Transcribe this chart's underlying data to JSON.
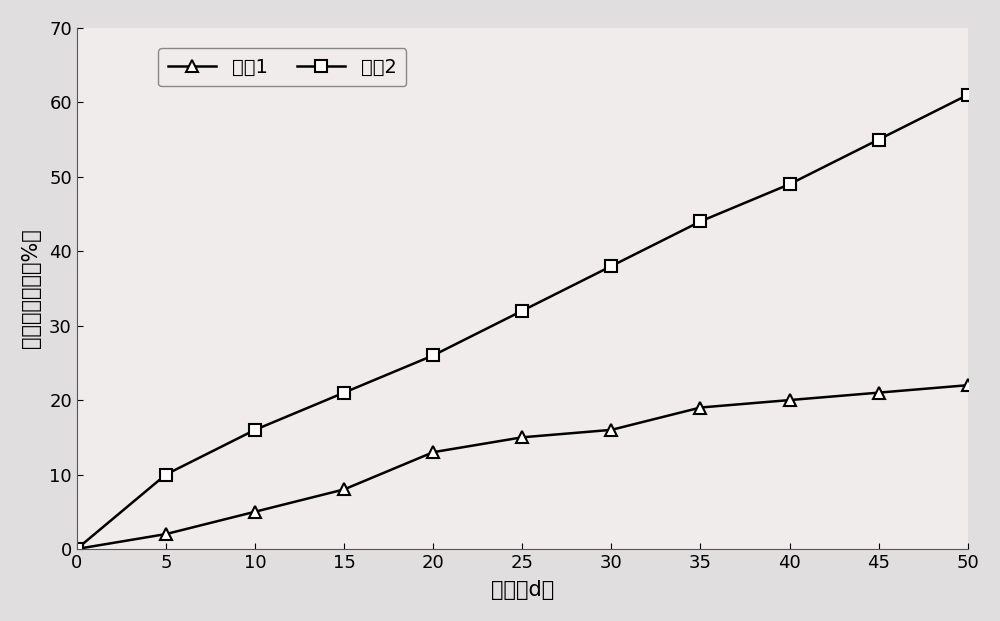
{
  "x": [
    0,
    5,
    10,
    15,
    20,
    25,
    30,
    35,
    40,
    45,
    50
  ],
  "series1_y": [
    0,
    2,
    5,
    8,
    13,
    15,
    16,
    19,
    20,
    21,
    22
  ],
  "series2_y": [
    0,
    10,
    16,
    21,
    26,
    32,
    38,
    44,
    49,
    55,
    61
  ],
  "series1_label": "处礆1",
  "series2_label": "处礆2",
  "xlabel": "时间（d）",
  "ylabel": "石油烃去除率（%）",
  "ylim": [
    0,
    70
  ],
  "xlim": [
    0,
    50
  ],
  "yticks": [
    0,
    10,
    20,
    30,
    40,
    50,
    60,
    70
  ],
  "xticks": [
    0,
    5,
    10,
    15,
    20,
    25,
    30,
    35,
    40,
    45,
    50
  ],
  "line_color": "#000000",
  "bg_color": "#e0dede",
  "plot_bg_color": "#f0ecec",
  "label_fontsize": 15,
  "tick_fontsize": 13,
  "legend_fontsize": 14
}
